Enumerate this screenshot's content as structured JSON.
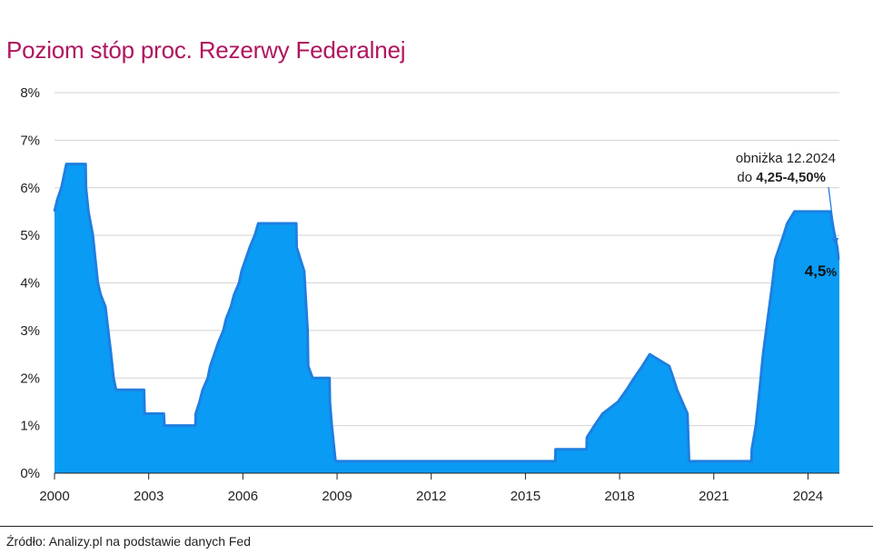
{
  "title": "Poziom stóp proc. Rezerwy Federalnej",
  "source": "Źródło: Analizy.pl na podstawie danych Fed",
  "colors": {
    "title": "#b0155f",
    "fill": "#0a9bf5",
    "line": "#1e7fe0",
    "grid": "#d3d3d3",
    "axis": "#222222"
  },
  "chart_data": {
    "type": "area",
    "title": "Poziom stóp proc. Rezerwy Federalnej",
    "xlabel": "",
    "ylabel": "",
    "xlim": [
      2000.0,
      2025.0
    ],
    "ylim": [
      0,
      8
    ],
    "x_ticks": [
      2000,
      2003,
      2006,
      2009,
      2012,
      2015,
      2018,
      2021,
      2024
    ],
    "y_ticks": [
      {
        "value": 0,
        "label": "0%"
      },
      {
        "value": 1,
        "label": "1%"
      },
      {
        "value": 2,
        "label": "2%"
      },
      {
        "value": 3,
        "label": "3%"
      },
      {
        "value": 4,
        "label": "4%"
      },
      {
        "value": 5,
        "label": "5%"
      },
      {
        "value": 6,
        "label": "6%"
      },
      {
        "value": 7,
        "label": "7%"
      },
      {
        "value": 8,
        "label": "8%"
      }
    ],
    "grid": true,
    "series": [
      {
        "name": "",
        "points": [
          [
            2000.0,
            5.5
          ],
          [
            2000.09,
            5.75
          ],
          [
            2000.22,
            6.0
          ],
          [
            2000.38,
            6.5
          ],
          [
            2000.99,
            6.5
          ],
          [
            2001.0,
            6.0
          ],
          [
            2001.08,
            5.5
          ],
          [
            2001.22,
            5.0
          ],
          [
            2001.3,
            4.5
          ],
          [
            2001.38,
            4.0
          ],
          [
            2001.47,
            3.75
          ],
          [
            2001.62,
            3.5
          ],
          [
            2001.71,
            3.0
          ],
          [
            2001.8,
            2.5
          ],
          [
            2001.88,
            2.0
          ],
          [
            2001.96,
            1.75
          ],
          [
            2002.85,
            1.75
          ],
          [
            2002.87,
            1.25
          ],
          [
            2003.48,
            1.25
          ],
          [
            2003.5,
            1.0
          ],
          [
            2004.49,
            1.0
          ],
          [
            2004.5,
            1.25
          ],
          [
            2004.62,
            1.5
          ],
          [
            2004.72,
            1.75
          ],
          [
            2004.88,
            2.0
          ],
          [
            2004.96,
            2.25
          ],
          [
            2005.09,
            2.5
          ],
          [
            2005.22,
            2.75
          ],
          [
            2005.38,
            3.0
          ],
          [
            2005.47,
            3.25
          ],
          [
            2005.62,
            3.5
          ],
          [
            2005.72,
            3.75
          ],
          [
            2005.88,
            4.0
          ],
          [
            2005.96,
            4.25
          ],
          [
            2006.09,
            4.5
          ],
          [
            2006.22,
            4.75
          ],
          [
            2006.38,
            5.0
          ],
          [
            2006.49,
            5.25
          ],
          [
            2007.7,
            5.25
          ],
          [
            2007.71,
            4.75
          ],
          [
            2007.83,
            4.5
          ],
          [
            2007.95,
            4.25
          ],
          [
            2008.06,
            3.0
          ],
          [
            2008.08,
            2.25
          ],
          [
            2008.22,
            2.0
          ],
          [
            2008.76,
            2.0
          ],
          [
            2008.77,
            1.5
          ],
          [
            2008.83,
            1.0
          ],
          [
            2008.95,
            0.25
          ],
          [
            2015.95,
            0.25
          ],
          [
            2015.96,
            0.5
          ],
          [
            2016.95,
            0.5
          ],
          [
            2016.96,
            0.75
          ],
          [
            2017.2,
            1.0
          ],
          [
            2017.46,
            1.25
          ],
          [
            2017.95,
            1.5
          ],
          [
            2018.22,
            1.75
          ],
          [
            2018.46,
            2.0
          ],
          [
            2018.72,
            2.25
          ],
          [
            2018.96,
            2.5
          ],
          [
            2019.58,
            2.25
          ],
          [
            2019.71,
            2.0
          ],
          [
            2019.83,
            1.75
          ],
          [
            2020.16,
            1.25
          ],
          [
            2020.21,
            0.25
          ],
          [
            2022.2,
            0.25
          ],
          [
            2022.21,
            0.5
          ],
          [
            2022.34,
            1.0
          ],
          [
            2022.46,
            1.75
          ],
          [
            2022.57,
            2.5
          ],
          [
            2022.72,
            3.25
          ],
          [
            2022.87,
            4.0
          ],
          [
            2022.96,
            4.5
          ],
          [
            2023.09,
            4.75
          ],
          [
            2023.22,
            5.0
          ],
          [
            2023.34,
            5.25
          ],
          [
            2023.57,
            5.5
          ],
          [
            2024.71,
            5.5
          ],
          [
            2024.85,
            5.0
          ],
          [
            2024.93,
            4.75
          ],
          [
            2024.97,
            4.5
          ],
          [
            2025.0,
            4.5
          ]
        ]
      }
    ],
    "annotations": [
      {
        "id": "cut",
        "line1": "obniżka 12.2024",
        "line2_prefix": "do ",
        "line2_bold": "4,25-4,50%",
        "x": 2024.97,
        "y": 4.75
      },
      {
        "id": "last",
        "value_label": "4,5",
        "unit_label": "%",
        "x": 2025.0,
        "y": 4.5
      }
    ]
  }
}
